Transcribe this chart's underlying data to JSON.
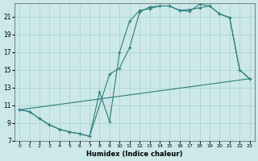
{
  "xlabel": "Humidex (Indice chaleur)",
  "bg_color": "#cce8e8",
  "line_color": "#2e7d7d",
  "grid_color": "#aacfcf",
  "xlim": [
    -0.5,
    23.5
  ],
  "ylim": [
    7,
    22.5
  ],
  "xticks": [
    0,
    1,
    2,
    3,
    4,
    5,
    6,
    7,
    8,
    9,
    10,
    11,
    12,
    13,
    14,
    15,
    16,
    17,
    18,
    19,
    20,
    21,
    22,
    23
  ],
  "yticks": [
    7,
    9,
    11,
    13,
    15,
    17,
    19,
    21
  ],
  "line1_x": [
    0,
    1,
    2,
    3,
    4,
    5,
    6,
    7,
    8,
    9,
    10,
    11,
    12,
    13,
    14,
    15,
    16,
    17,
    18,
    19,
    20,
    21,
    22,
    23
  ],
  "line1_y": [
    10.5,
    10.3,
    9.5,
    8.8,
    8.3,
    8.0,
    7.8,
    7.5,
    12.5,
    9.2,
    17.0,
    20.5,
    21.7,
    21.9,
    22.2,
    22.2,
    21.7,
    21.6,
    22.4,
    22.2,
    21.3,
    20.9,
    15.0,
    14.0
  ],
  "line2_x": [
    0,
    1,
    2,
    3,
    4,
    5,
    6,
    7,
    9,
    10,
    11,
    12,
    13,
    14,
    15,
    16,
    17,
    18,
    19,
    20,
    21,
    22,
    23
  ],
  "line2_y": [
    10.5,
    10.3,
    9.5,
    8.8,
    8.3,
    8.0,
    7.8,
    7.5,
    14.5,
    15.2,
    17.5,
    21.5,
    22.1,
    22.2,
    22.2,
    21.7,
    21.8,
    22.0,
    22.2,
    21.3,
    20.9,
    15.0,
    14.0
  ],
  "line3_x": [
    0,
    23
  ],
  "line3_y": [
    10.5,
    14.0
  ]
}
